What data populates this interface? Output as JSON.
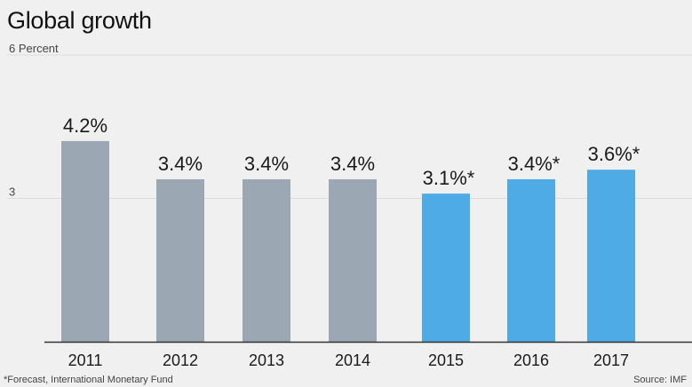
{
  "chart_data": {
    "type": "bar",
    "title": "Global growth",
    "ylabel": "Percent",
    "ylim": [
      0,
      6
    ],
    "y_ticks": [
      {
        "value": 6,
        "label": "6 Percent"
      },
      {
        "value": 3,
        "label": "3"
      }
    ],
    "categories": [
      "2011",
      "2012",
      "2013",
      "2014",
      "2015",
      "2016",
      "2017"
    ],
    "values": [
      4.2,
      3.4,
      3.4,
      3.4,
      3.1,
      3.4,
      3.6
    ],
    "data_labels": [
      "4.2%",
      "3.4%",
      "3.4%",
      "3.4%",
      "3.1%*",
      "3.4%*",
      "3.6%*"
    ],
    "forecast": [
      false,
      false,
      false,
      false,
      true,
      true,
      true
    ],
    "colors": {
      "actual": "#9ba8b3",
      "forecast": "#4fabe5",
      "grid": "#dcdcdc",
      "baseline": "#333333"
    },
    "grid": true,
    "footnote": "*Forecast, International Monetary Fund",
    "source": "Source: IMF"
  }
}
